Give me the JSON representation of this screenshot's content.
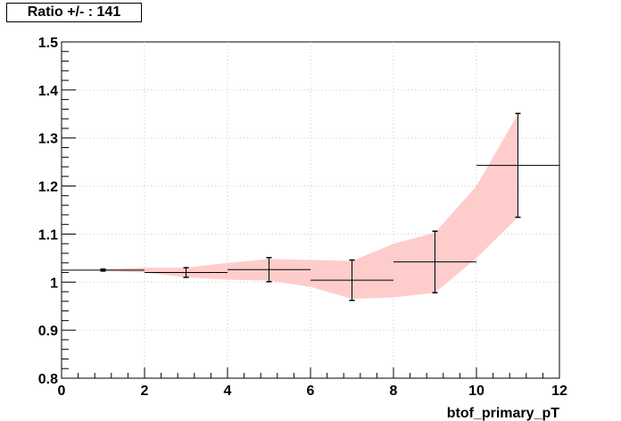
{
  "chart_data": {
    "type": "line",
    "title": "Ratio +/- : 141",
    "xlabel": "btof_primary_pT",
    "ylabel": "",
    "xlim": [
      0,
      12
    ],
    "ylim": [
      0.8,
      1.5
    ],
    "xticks": [
      "0",
      "2",
      "4",
      "6",
      "8",
      "10",
      "12"
    ],
    "yticks": [
      "0.8",
      "0.9",
      "1",
      "1.1",
      "1.2",
      "1.3",
      "1.4",
      "1.5"
    ],
    "grid": true,
    "colors": {
      "band": "#ffcccc",
      "points": "#000000",
      "grid": "#c8c8c8"
    },
    "points": [
      {
        "x": 1,
        "xerr": 1,
        "y": 1.025,
        "yerr": 0.002
      },
      {
        "x": 3,
        "xerr": 1,
        "y": 1.02,
        "yerr": 0.01
      },
      {
        "x": 5,
        "xerr": 1,
        "y": 1.026,
        "yerr": 0.025
      },
      {
        "x": 7,
        "xerr": 1,
        "y": 1.004,
        "yerr": 0.042
      },
      {
        "x": 9,
        "xerr": 1,
        "y": 1.042,
        "yerr": 0.064
      },
      {
        "x": 11,
        "xerr": 1,
        "y": 1.243,
        "yerr": 0.108
      }
    ],
    "band": {
      "x": [
        1,
        2,
        3,
        4,
        5,
        6,
        7,
        8,
        9,
        10,
        11
      ],
      "upper": [
        1.027,
        1.03,
        1.03,
        1.04,
        1.048,
        1.046,
        1.044,
        1.08,
        1.103,
        1.2,
        1.35
      ],
      "lower": [
        1.023,
        1.02,
        1.01,
        1.005,
        1.003,
        0.99,
        0.965,
        0.968,
        0.978,
        1.05,
        1.135
      ]
    }
  }
}
